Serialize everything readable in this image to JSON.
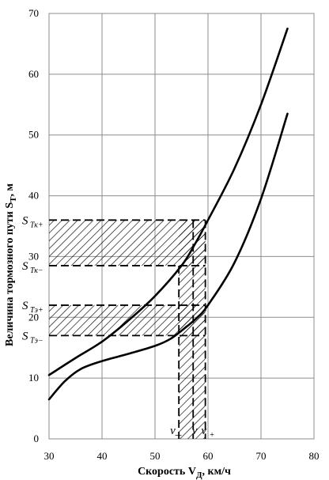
{
  "chart_data": {
    "type": "line",
    "xlabel": "Скорость V",
    "xlabel_sub": "Д",
    "xlabel_unit": ", км/ч",
    "ylabel": "Величина тормозного пути  S",
    "ylabel_sub": "Т",
    "ylabel_unit": ", м",
    "xlim": [
      30,
      80
    ],
    "ylim": [
      0,
      70
    ],
    "x_ticks": [
      30,
      40,
      50,
      60,
      70,
      80
    ],
    "y_ticks": [
      0,
      10,
      20,
      30,
      40,
      50,
      60,
      70
    ],
    "grid": true,
    "series": [
      {
        "x": [
          30,
          35,
          40,
          45,
          50,
          55,
          57.5,
          60,
          65,
          70,
          75
        ],
        "y": [
          10.5,
          13.3,
          16.0,
          19.5,
          23.5,
          28.5,
          32.0,
          36.0,
          44.5,
          55.0,
          67.5
        ]
      },
      {
        "x": [
          30,
          33,
          36,
          40,
          45,
          50,
          53,
          56,
          58,
          60,
          65,
          70,
          75
        ],
        "y": [
          6.5,
          9.5,
          11.5,
          12.8,
          14.0,
          15.3,
          16.5,
          18.5,
          20.0,
          22.0,
          29.0,
          39.5,
          53.5
        ]
      }
    ],
    "annotations": {
      "levels": [
        {
          "base": "S",
          "sub": "Тк+",
          "value": 36.0
        },
        {
          "base": "S",
          "sub": "Тк−",
          "value": 28.5
        },
        {
          "base": "S",
          "sub": "Тэ+",
          "value": 22.0
        },
        {
          "base": "S",
          "sub": "Тэ−",
          "value": 17.0
        }
      ],
      "speeds": [
        {
          "label": "v_",
          "value": 54.5
        },
        {
          "label": "v",
          "value": 57.2
        },
        {
          "label": "v",
          "sub": "+",
          "value": 59.5
        }
      ]
    }
  }
}
